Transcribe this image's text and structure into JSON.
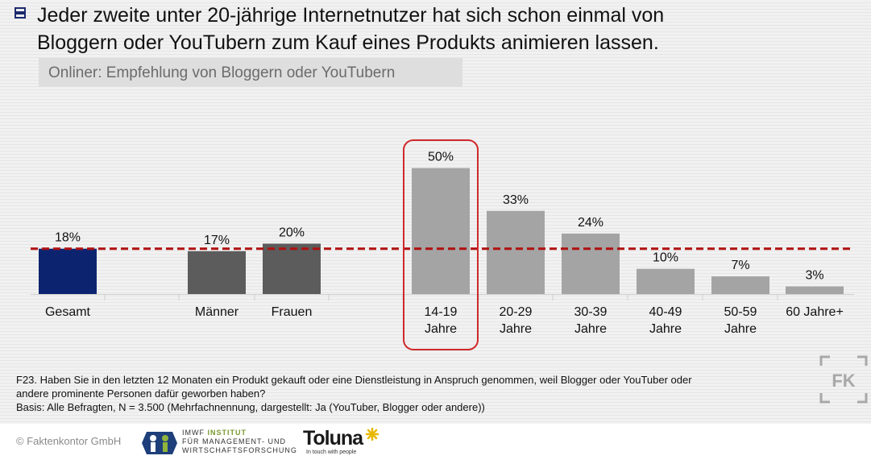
{
  "header": {
    "title_line1": "Jeder zweite unter 20-jährige Internetnutzer hat sich schon einmal von",
    "title_line2": "Bloggern oder YouTubern zum Kauf eines Produkts animieren lassen.",
    "subtitle": "Onliner: Empfehlung von Bloggern oder YouTubern"
  },
  "chart_data": {
    "type": "bar",
    "categories": [
      [
        "Gesamt"
      ],
      [
        "Männer"
      ],
      [
        "Frauen"
      ],
      [
        "14-19",
        "Jahre"
      ],
      [
        "20-29",
        "Jahre"
      ],
      [
        "30-39",
        "Jahre"
      ],
      [
        "40-49",
        "Jahre"
      ],
      [
        "50-59",
        "Jahre"
      ],
      [
        "60 Jahre+"
      ]
    ],
    "values": [
      18,
      17,
      20,
      50,
      33,
      24,
      10,
      7,
      3
    ],
    "labels": [
      "18%",
      "17%",
      "20%",
      "50%",
      "33%",
      "24%",
      "10%",
      "7%",
      "3%"
    ],
    "groups": [
      "total",
      "gender",
      "gender",
      "age",
      "age",
      "age",
      "age",
      "age",
      "age"
    ],
    "reference_line": 18,
    "highlight_index": 3,
    "ylim": [
      0,
      55
    ],
    "colors": {
      "total": "#0c2470",
      "gender": "#5c5c5c",
      "age": "#a4a4a4",
      "reference": "#b01010",
      "highlight": "#d0282a"
    }
  },
  "footnote": {
    "line1": "F23. Haben Sie in den letzten 12 Monaten ein Produkt gekauft oder eine Dienstleistung in Anspruch genommen, weil Blogger oder YouTuber oder",
    "line2": "andere prominente Personen dafür geworben haben?",
    "line3": "Basis: Alle Befragten, N = 3.500 (Mehrfachnennung, dargestellt: Ja (YouTuber, Blogger oder andere))"
  },
  "footer": {
    "copyright": "© Faktenkontor GmbH",
    "imwf_line1": "IMWF",
    "imwf_inst": "INSTITUT",
    "imwf_line2": "FÜR MANAGEMENT- UND",
    "imwf_line3": "WIRTSCHAFTSFORSCHUNG",
    "toluna_name": "Toluna",
    "toluna_tagline": "In touch with people",
    "fk_mark": "FK"
  },
  "icons": {
    "bullet": "square-bullet-icon"
  }
}
